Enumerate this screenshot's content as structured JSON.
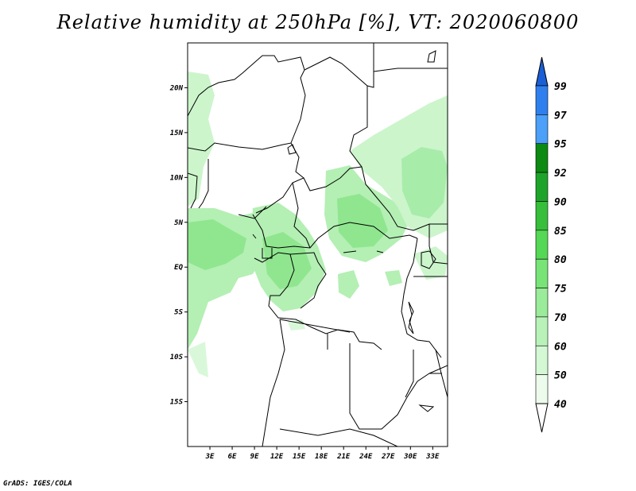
{
  "title": "Relative humidity at 250hPa [%], VT: 2020060800",
  "credit": "GrADS: IGES/COLA",
  "map": {
    "variable": "Relative humidity",
    "level": "250hPa",
    "units": "%",
    "valid_time": "2020060800",
    "lon_range": [
      0,
      35
    ],
    "lat_range": [
      -20,
      25
    ],
    "lat_ticks": [
      {
        "value": 20,
        "label": "20N"
      },
      {
        "value": 15,
        "label": "15N"
      },
      {
        "value": 10,
        "label": "10N"
      },
      {
        "value": 5,
        "label": "5N"
      },
      {
        "value": 0,
        "label": "EQ"
      },
      {
        "value": -5,
        "label": "5S"
      },
      {
        "value": -10,
        "label": "10S"
      },
      {
        "value": -15,
        "label": "15S"
      }
    ],
    "lon_ticks": [
      {
        "value": 3,
        "label": "3E"
      },
      {
        "value": 6,
        "label": "6E"
      },
      {
        "value": 9,
        "label": "9E"
      },
      {
        "value": 12,
        "label": "12E"
      },
      {
        "value": 15,
        "label": "15E"
      },
      {
        "value": 18,
        "label": "18E"
      },
      {
        "value": 21,
        "label": "21E"
      },
      {
        "value": 24,
        "label": "24E"
      },
      {
        "value": 27,
        "label": "27E"
      },
      {
        "value": 30,
        "label": "30E"
      },
      {
        "value": 33,
        "label": "33E"
      }
    ]
  },
  "colorbar": {
    "levels": [
      {
        "label": "99",
        "color": "#1e6ee6"
      },
      {
        "label": "97",
        "color": "#2f80ee"
      },
      {
        "label": "95",
        "color": "#4ca0f8"
      },
      {
        "label": "92",
        "color": "#0d8a12"
      },
      {
        "label": "90",
        "color": "#1ea42a"
      },
      {
        "label": "85",
        "color": "#37be3a"
      },
      {
        "label": "80",
        "color": "#55d855"
      },
      {
        "label": "75",
        "color": "#78e478"
      },
      {
        "label": "70",
        "color": "#9aeb9a"
      },
      {
        "label": "60",
        "color": "#b8f2b8"
      },
      {
        "label": "50",
        "color": "#d4f7d4"
      },
      {
        "label": "40",
        "color": "#ecfbec"
      }
    ],
    "top_color": "#1a5fd6",
    "bottom_color": "#ffffff"
  }
}
